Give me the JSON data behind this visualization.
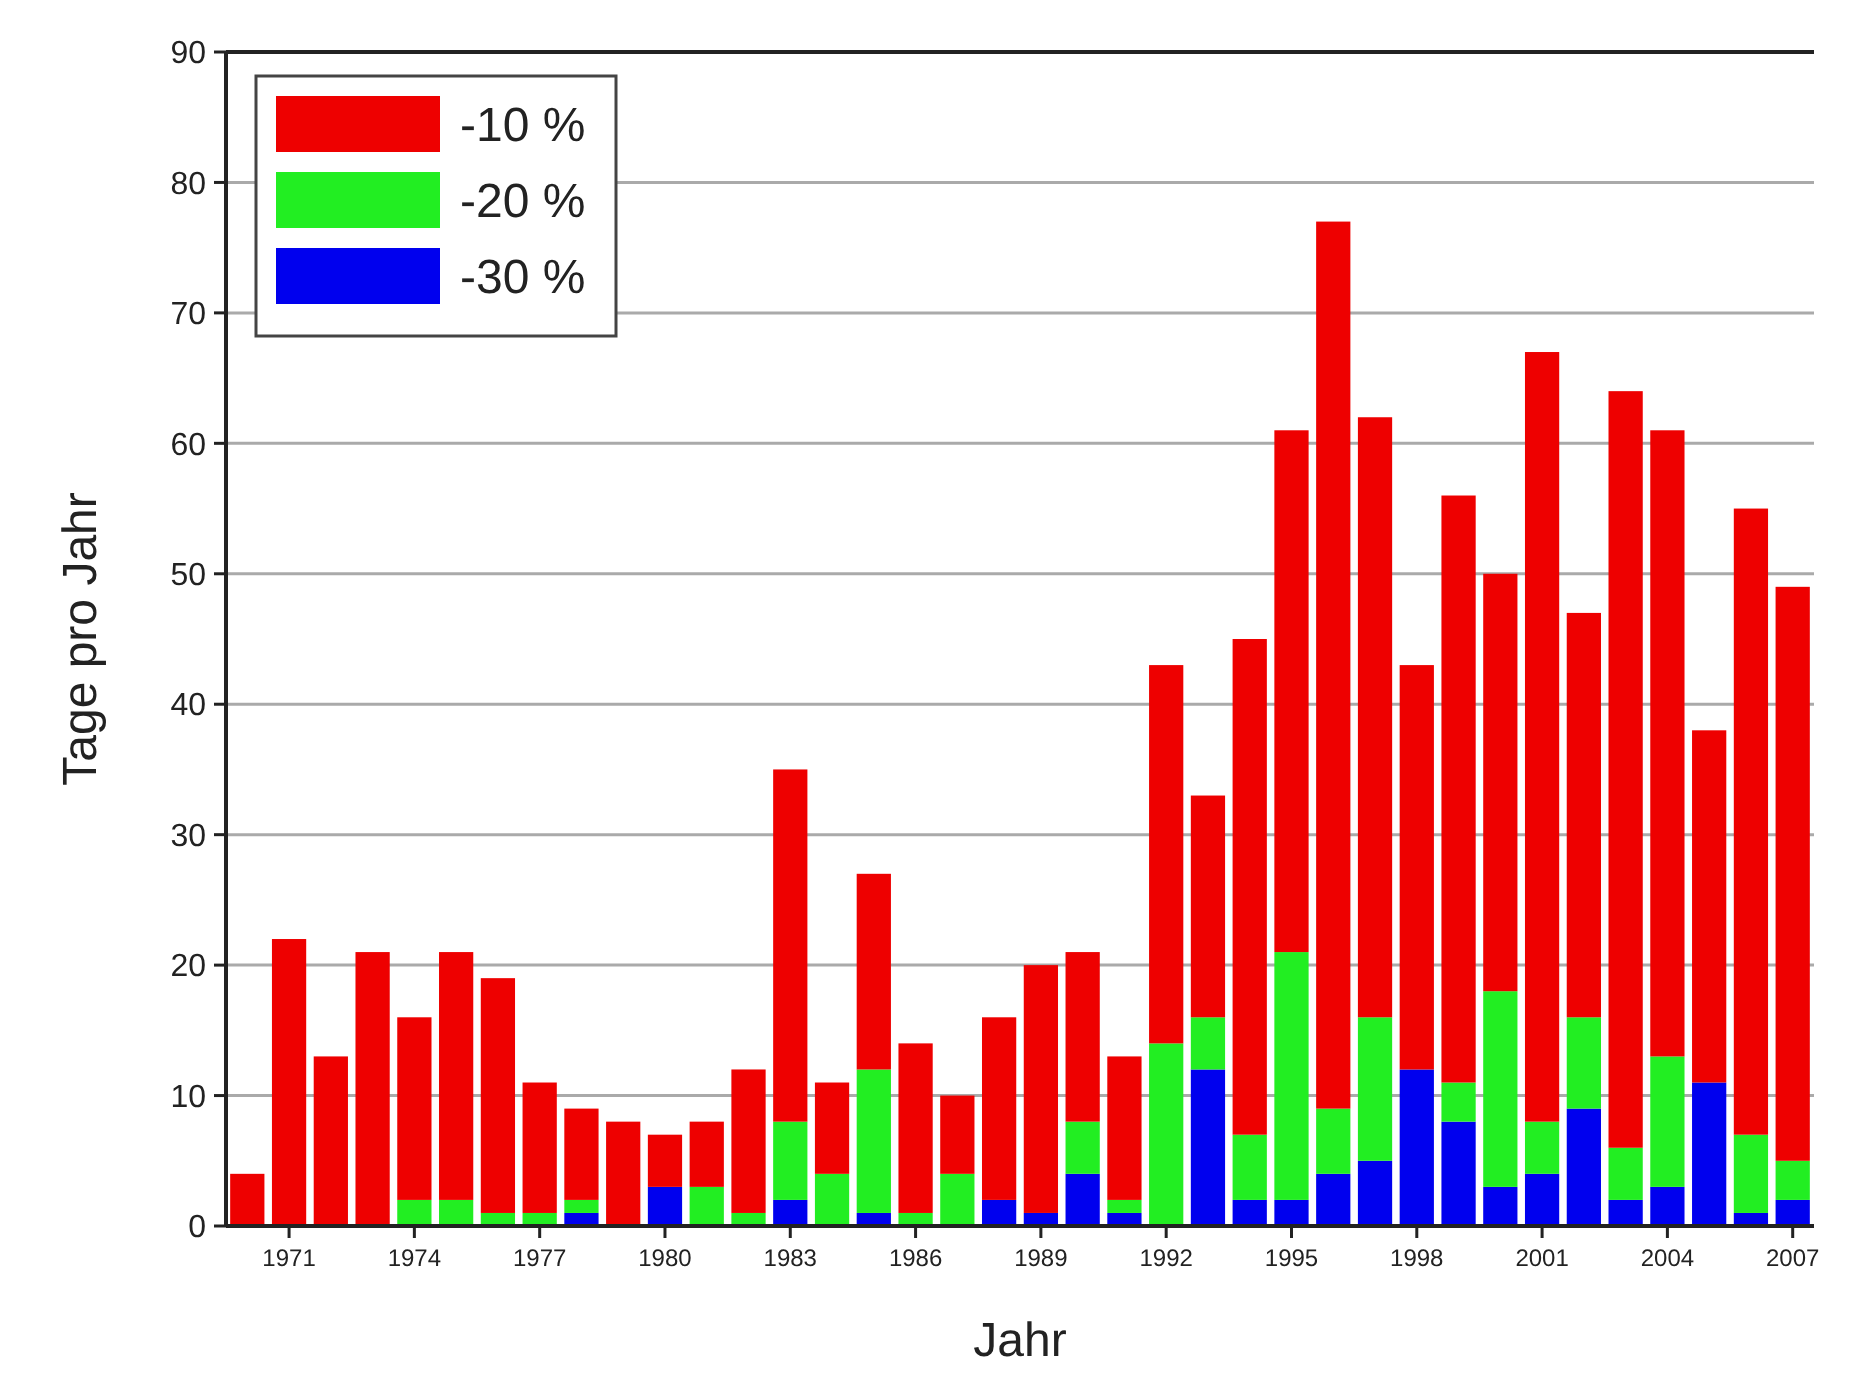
{
  "chart_data": {
    "type": "bar",
    "stacked": true,
    "xlabel": "Jahr",
    "ylabel": "Tage pro Jahr",
    "categories": [
      null,
      "1971",
      null,
      null,
      "1974",
      null,
      null,
      "1977",
      null,
      null,
      "1980",
      null,
      null,
      "1983",
      null,
      null,
      "1986",
      null,
      null,
      "1989",
      null,
      null,
      "1992",
      null,
      null,
      "1995",
      null,
      null,
      "1998",
      null,
      null,
      "2001",
      null,
      null,
      "2004",
      null,
      null,
      "2007"
    ],
    "series": [
      {
        "name": "-30 %",
        "color": "#0000ee",
        "values": [
          0,
          0,
          0,
          0,
          0,
          0,
          0,
          0,
          1,
          0,
          3,
          0,
          0,
          2,
          0,
          1,
          0,
          0,
          2,
          1,
          4,
          1,
          0,
          12,
          2,
          2,
          4,
          5,
          12,
          8,
          3,
          4,
          9,
          2,
          3,
          11,
          1,
          2
        ]
      },
      {
        "name": "-20 %",
        "color": "#22ee22",
        "values": [
          0,
          0,
          0,
          0,
          2,
          2,
          1,
          1,
          1,
          0,
          0,
          3,
          1,
          6,
          4,
          11,
          1,
          4,
          0,
          0,
          4,
          1,
          14,
          4,
          5,
          19,
          5,
          11,
          0,
          3,
          15,
          4,
          7,
          4,
          10,
          0,
          6,
          3
        ]
      },
      {
        "name": "-10 %",
        "color": "#ee0000",
        "values": [
          4,
          22,
          13,
          21,
          14,
          19,
          18,
          10,
          7,
          8,
          4,
          5,
          11,
          27,
          7,
          15,
          13,
          6,
          14,
          19,
          13,
          11,
          29,
          17,
          38,
          40,
          68,
          46,
          31,
          45,
          32,
          59,
          31,
          58,
          48,
          27,
          48,
          44
        ]
      }
    ],
    "ylim": [
      0,
      90
    ],
    "yticks": [
      0,
      10,
      20,
      30,
      40,
      50,
      60,
      70,
      80,
      90
    ],
    "grid": "y",
    "legend": "top left"
  }
}
